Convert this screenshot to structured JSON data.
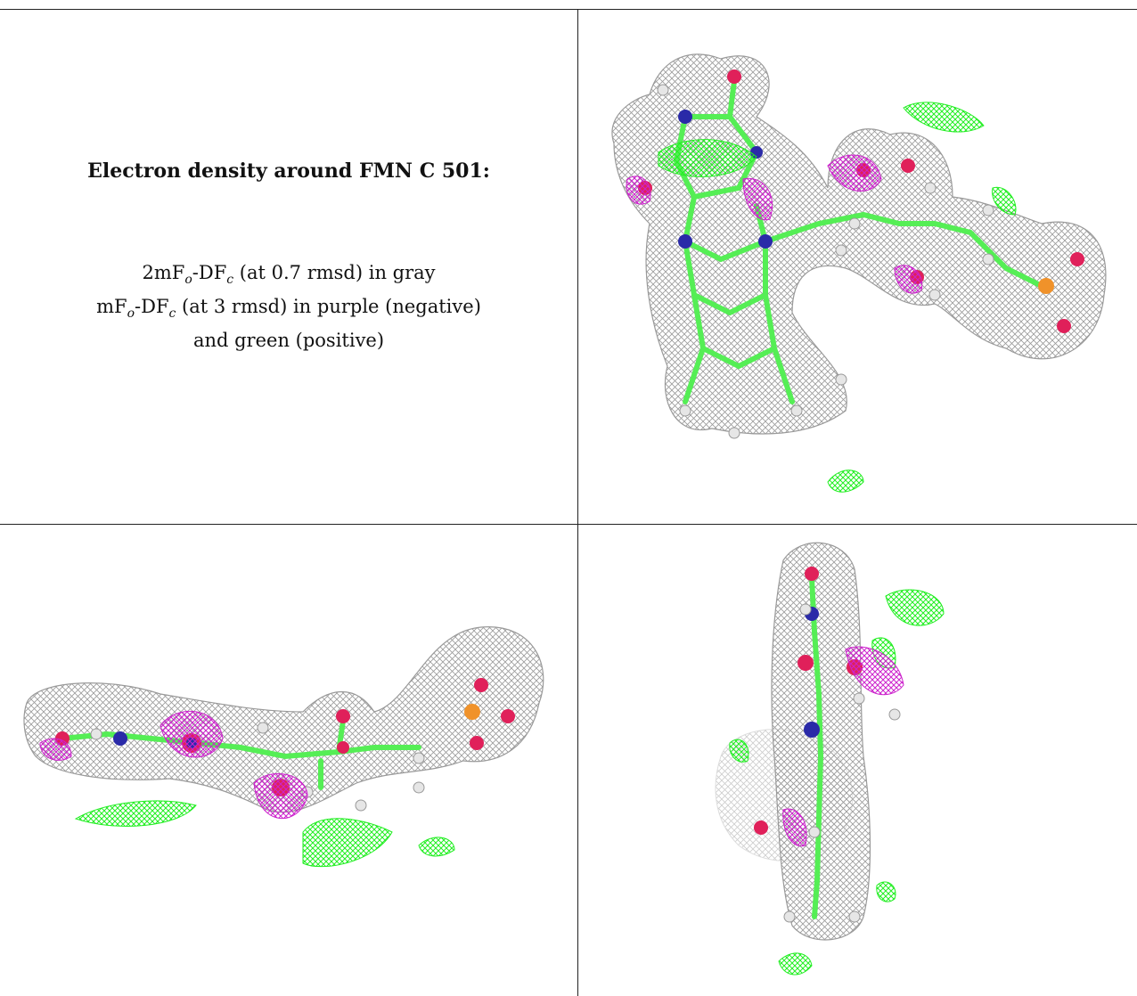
{
  "caption": {
    "title": "Electron density around FMN C 501:",
    "line1_a": "2mF",
    "line1_o": "o",
    "line1_b": "-DF",
    "line1_c": "c",
    "line1_rest": " (at 0.7 rmsd) in gray",
    "line2_a": "mF",
    "line2_o": "o",
    "line2_b": "-DF",
    "line2_c": "c",
    "line2_rest": " (at 3 rmsd) in purple (negative)",
    "line3": "and green (positive)"
  },
  "colors": {
    "mesh_2fofc": "#9a9a9a",
    "mesh_negative": "#cc22cc",
    "mesh_positive": "#22ee22",
    "carbon": "#55ee55",
    "nitrogen": "#2a2aa8",
    "oxygen": "#e0205a",
    "phosphorus": "#f0922a",
    "hydrogen": "#e6e6e6"
  }
}
